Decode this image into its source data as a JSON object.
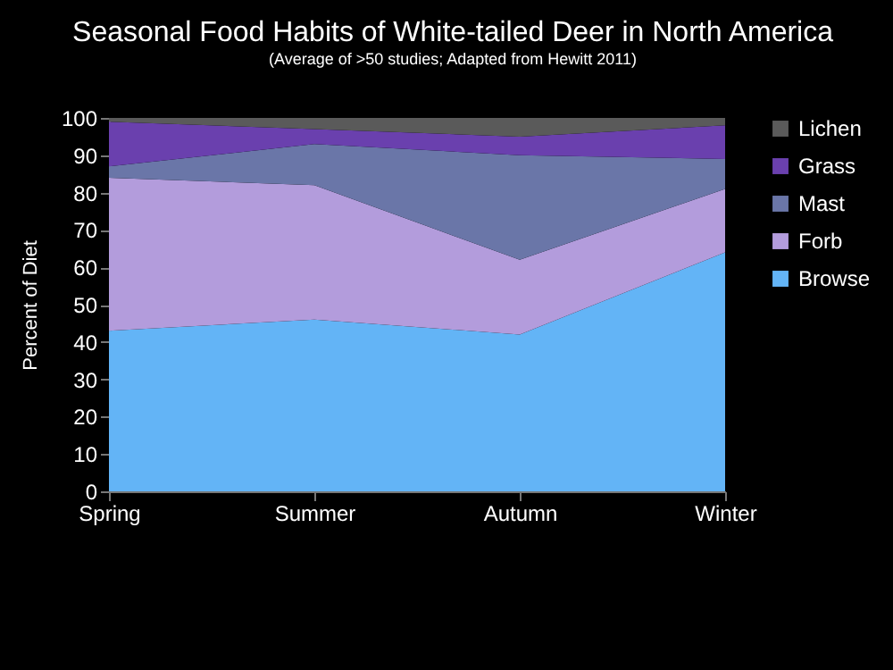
{
  "chart_data": {
    "type": "area",
    "title": "Seasonal Food Habits of White-tailed Deer in North America",
    "subtitle": "(Average of >50 studies; Adapted from Hewitt 2011)",
    "ylabel": "Percent of Diet",
    "categories": [
      "Spring",
      "Summer",
      "Autumn",
      "Winter"
    ],
    "stacked": true,
    "ylim": [
      0,
      100
    ],
    "yticks": [
      0,
      10,
      20,
      30,
      40,
      50,
      60,
      70,
      80,
      90,
      100
    ],
    "grid": false,
    "legend": "right",
    "series": [
      {
        "name": "Browse",
        "color": "#63b4f6",
        "values": [
          43,
          46,
          42,
          64
        ]
      },
      {
        "name": "Forb",
        "color": "#b39cdc",
        "values": [
          41,
          36,
          20,
          17
        ]
      },
      {
        "name": "Mast",
        "color": "#6a76a8",
        "values": [
          3,
          11,
          28,
          8
        ]
      },
      {
        "name": "Grass",
        "color": "#6a40ae",
        "values": [
          12,
          4,
          5,
          9
        ]
      },
      {
        "name": "Lichen",
        "color": "#5a5a5a",
        "values": [
          1,
          3,
          5,
          2
        ]
      }
    ]
  }
}
